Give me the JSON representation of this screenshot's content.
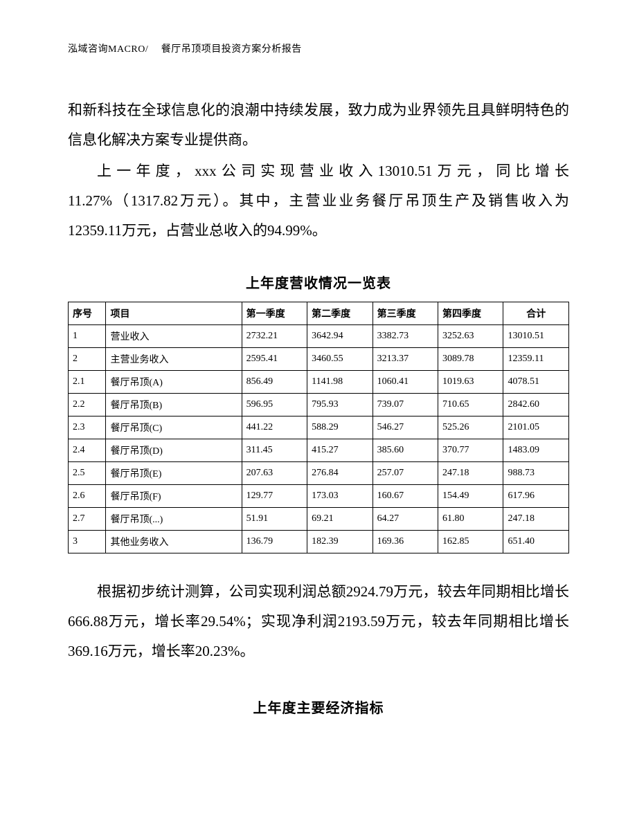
{
  "header": "泓域咨询MACRO/　 餐厅吊顶项目投资方案分析报告",
  "para1": "和新科技在全球信息化的浪潮中持续发展，致力成为业界领先且具鲜明特色的信息化解决方案专业提供商。",
  "para2": "上一年度，xxx公司实现营业收入13010.51万元，同比增长11.27%（1317.82万元）。其中，主营业业务餐厅吊顶生产及销售收入为12359.11万元，占营业总收入的94.99%。",
  "table1": {
    "title": "上年度营收情况一览表",
    "columns": [
      "序号",
      "项目",
      "第一季度",
      "第二季度",
      "第三季度",
      "第四季度",
      "合计"
    ],
    "col_align": [
      "left",
      "left",
      "left",
      "left",
      "left",
      "left",
      "left"
    ],
    "header_align_last": "center",
    "rows": [
      [
        "1",
        "营业收入",
        "2732.21",
        "3642.94",
        "3382.73",
        "3252.63",
        "13010.51"
      ],
      [
        "2",
        "主营业务收入",
        "2595.41",
        "3460.55",
        "3213.37",
        "3089.78",
        "12359.11"
      ],
      [
        "2.1",
        "餐厅吊顶(A)",
        "856.49",
        "1141.98",
        "1060.41",
        "1019.63",
        "4078.51"
      ],
      [
        "2.2",
        "餐厅吊顶(B)",
        "596.95",
        "795.93",
        "739.07",
        "710.65",
        "2842.60"
      ],
      [
        "2.3",
        "餐厅吊顶(C)",
        "441.22",
        "588.29",
        "546.27",
        "525.26",
        "2101.05"
      ],
      [
        "2.4",
        "餐厅吊顶(D)",
        "311.45",
        "415.27",
        "385.60",
        "370.77",
        "1483.09"
      ],
      [
        "2.5",
        "餐厅吊顶(E)",
        "207.63",
        "276.84",
        "257.07",
        "247.18",
        "988.73"
      ],
      [
        "2.6",
        "餐厅吊顶(F)",
        "129.77",
        "173.03",
        "160.67",
        "154.49",
        "617.96"
      ],
      [
        "2.7",
        "餐厅吊顶(...)",
        "51.91",
        "69.21",
        "64.27",
        "61.80",
        "247.18"
      ],
      [
        "3",
        "其他业务收入",
        "136.79",
        "182.39",
        "169.36",
        "162.85",
        "651.40"
      ]
    ]
  },
  "para3": "根据初步统计测算，公司实现利润总额2924.79万元，较去年同期相比增长666.88万元，增长率29.54%；实现净利润2193.59万元，较去年同期相比增长369.16万元，增长率20.23%。",
  "section2_title": "上年度主要经济指标",
  "colors": {
    "text": "#000000",
    "border": "#000000",
    "background": "#ffffff"
  },
  "fonts": {
    "body_size_pt": 16,
    "header_size_pt": 10,
    "table_size_pt": 10,
    "title_size_pt": 15,
    "family": "SimSun"
  }
}
